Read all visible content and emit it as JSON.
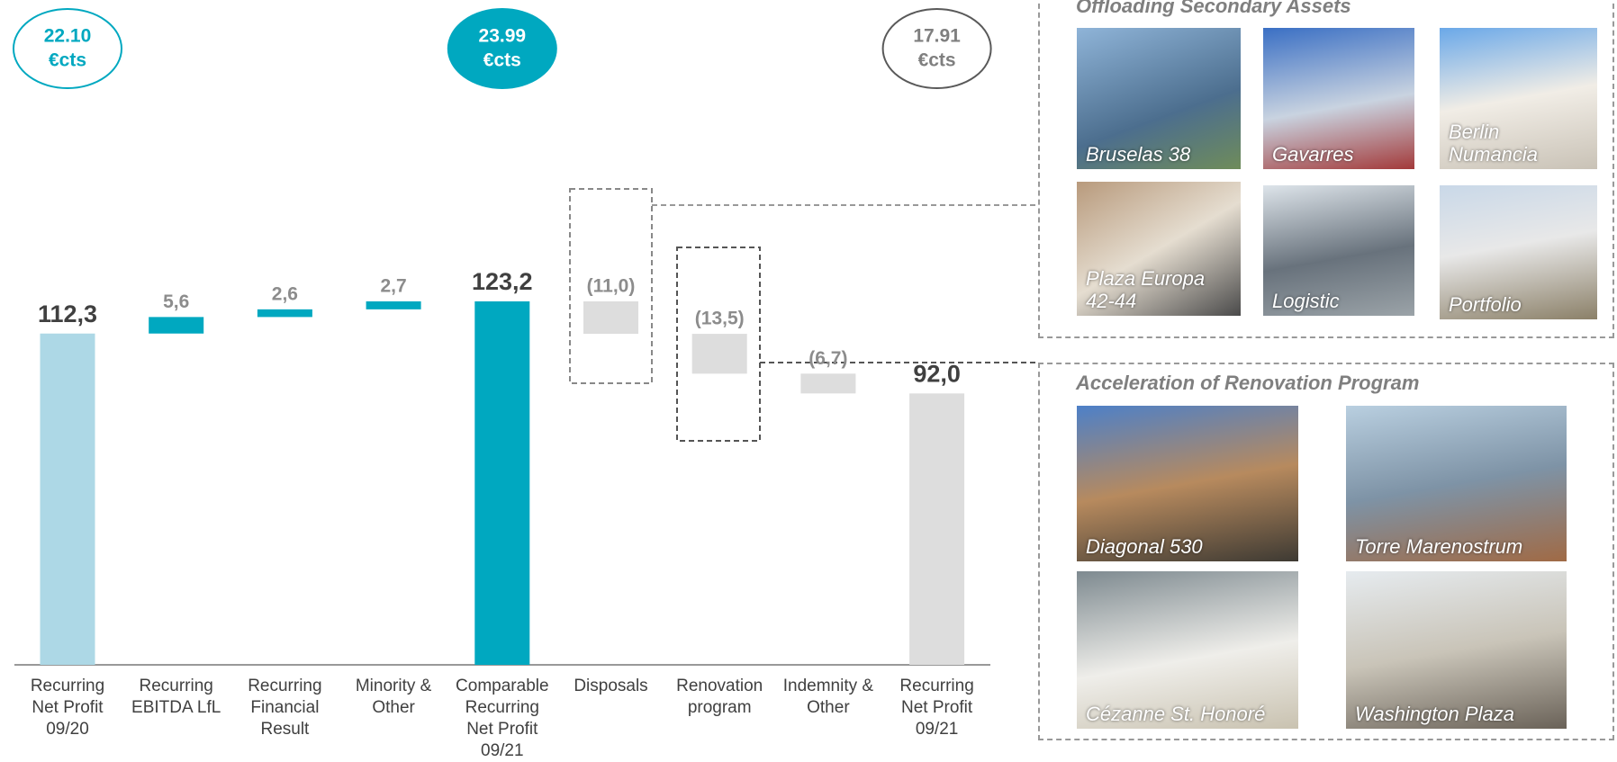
{
  "chart_data": {
    "type": "waterfall",
    "categories": [
      "Recurring\nNet Profit\n09/20",
      "Recurring\nEBITDA LfL",
      "Recurring\nFinancial\nResult",
      "Minority &\nOther",
      "Comparable\nRecurring\nNet Profit\n09/21",
      "Disposals",
      "Renovation\nprogram",
      "Indemnity &\nOther",
      "Recurring\nNet Profit\n09/21"
    ],
    "values": [
      112.3,
      5.6,
      2.6,
      2.7,
      123.2,
      -11.0,
      -13.5,
      -6.7,
      92.0
    ],
    "value_labels": [
      "112,3",
      "5,6",
      "2,6",
      "2,7",
      "123,2",
      "(11,0)",
      "(13,5)",
      "(6,7)",
      "92,0"
    ],
    "totals": [
      true,
      false,
      false,
      false,
      true,
      false,
      false,
      false,
      true
    ],
    "colors": [
      "#add8e6",
      "#00a8c0",
      "#00a8c0",
      "#00a8c0",
      "#00a8c0",
      "#dddddd",
      "#dddddd",
      "#dddddd",
      "#dddddd"
    ],
    "per_share_labels": [
      "22.10\n€cts",
      null,
      null,
      null,
      "23.99\n€cts",
      null,
      null,
      null,
      "17.91\n€cts"
    ]
  },
  "panels": [
    {
      "title": "Offloading Secondary Assets",
      "assets": [
        "Bruselas 38",
        "Gavarres",
        "Berlin Numancia",
        "Plaza Europa 42-44",
        "Logistic",
        "Portfolio"
      ]
    },
    {
      "title": "Acceleration of Renovation Program",
      "assets": [
        "Diagonal 530",
        "Torre Marenostrum",
        "Cézanne St. Honoré",
        "Washington Plaza"
      ]
    }
  ]
}
